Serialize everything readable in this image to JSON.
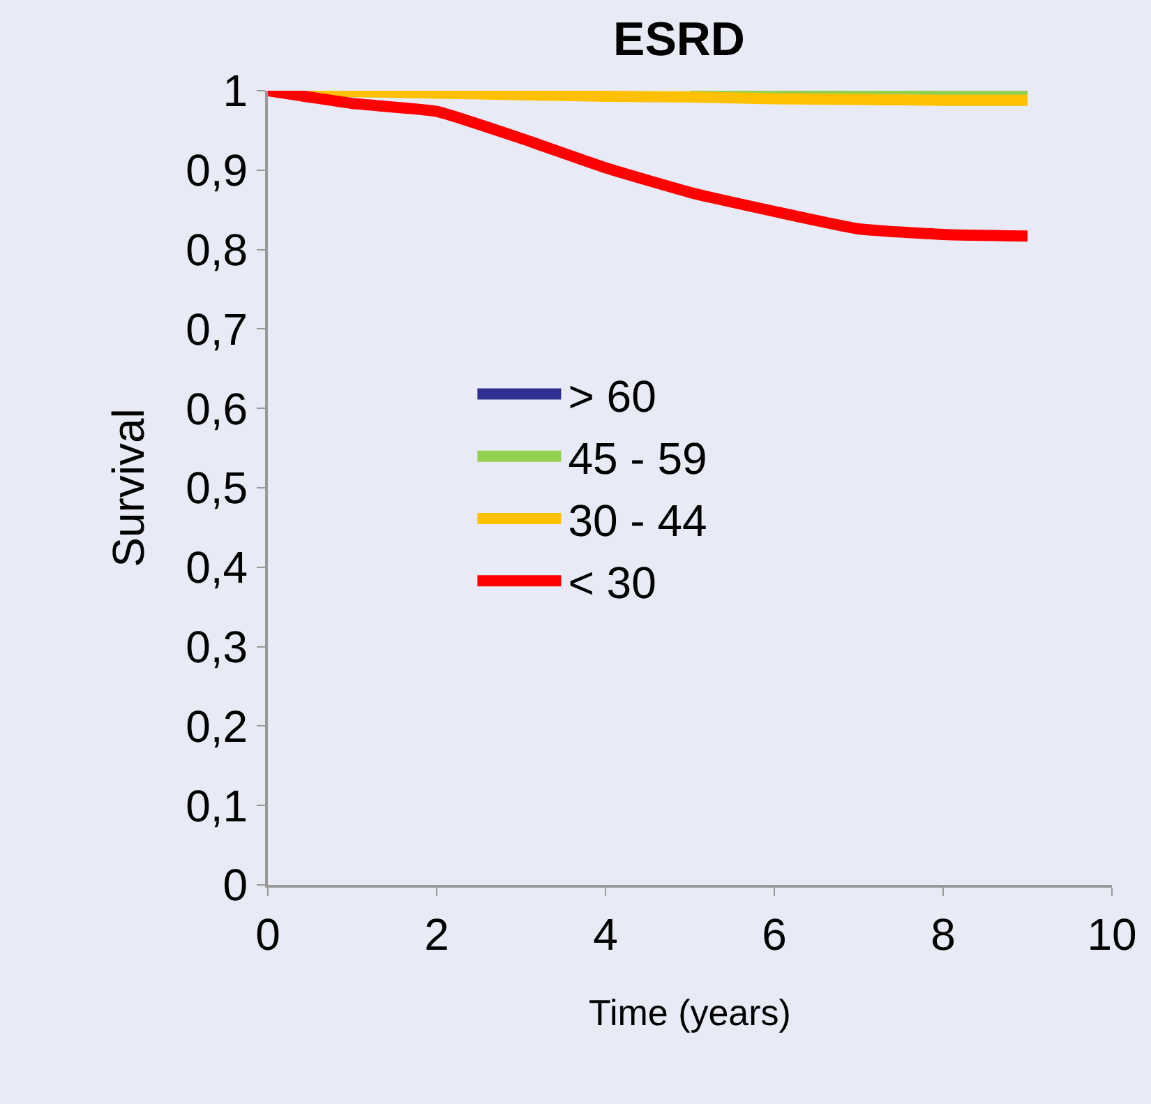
{
  "chart_data": {
    "type": "line",
    "title": "ESRD",
    "xlabel": "Time (years)",
    "ylabel": "Survival",
    "xlim": [
      0,
      10
    ],
    "xticks": [
      0,
      2,
      4,
      6,
      8,
      10
    ],
    "ylim": [
      0,
      1
    ],
    "yticks": [
      {
        "value": 0,
        "label": "0"
      },
      {
        "value": 0.1,
        "label": "0,1"
      },
      {
        "value": 0.2,
        "label": "0,2"
      },
      {
        "value": 0.3,
        "label": "0,3"
      },
      {
        "value": 0.4,
        "label": "0,4"
      },
      {
        "value": 0.5,
        "label": "0,5"
      },
      {
        "value": 0.6,
        "label": "0,6"
      },
      {
        "value": 0.7,
        "label": "0,7"
      },
      {
        "value": 0.8,
        "label": "0,8"
      },
      {
        "value": 0.9,
        "label": "0,9"
      },
      {
        "value": 1,
        "label": "1"
      }
    ],
    "grid": false,
    "legend": "left",
    "marker": "none",
    "line_style": "solid",
    "x": [
      0,
      1,
      2,
      3,
      4,
      5,
      6,
      7,
      8,
      9
    ],
    "series": [
      {
        "name": "> 60",
        "color": "#2e3192",
        "values": [
          null,
          null,
          null,
          null,
          null,
          null,
          null,
          null,
          null,
          null
        ]
      },
      {
        "name": "45 - 59",
        "color": "#92d050",
        "values": [
          null,
          null,
          null,
          null,
          null,
          1,
          1,
          1,
          1,
          1
        ]
      },
      {
        "name": "30 - 44",
        "color": "#ffc000",
        "values": [
          1,
          0.999,
          0.997,
          0.995,
          0.993,
          0.992,
          0.99,
          0.989,
          0.988,
          0.988
        ]
      },
      {
        "name": "< 30",
        "color": "#ff0000",
        "values": [
          1,
          0.984,
          0.974,
          0.94,
          0.903,
          0.872,
          0.848,
          0.826,
          0.819,
          0.817
        ]
      }
    ]
  }
}
